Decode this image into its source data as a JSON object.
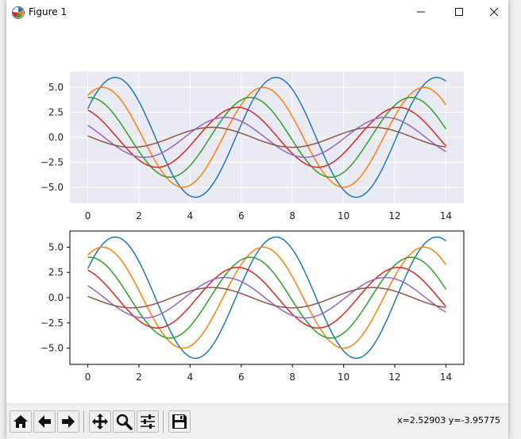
{
  "window": {
    "title": "Figure 1"
  },
  "toolbar": {
    "coordinates": "x=2.52903    y=-3.95775",
    "buttons": [
      {
        "name": "home-icon"
      },
      {
        "name": "back-arrow-icon"
      },
      {
        "name": "forward-arrow-icon"
      },
      {
        "name": "pan-move-icon"
      },
      {
        "name": "zoom-magnifier-icon"
      },
      {
        "name": "configure-subplots-icon"
      },
      {
        "name": "save-floppy-icon"
      }
    ]
  },
  "chart_data": [
    {
      "type": "line",
      "style": "seaborn-darkgrid",
      "grid": true,
      "background": "#eaeaf2",
      "xlim": [
        -0.7,
        14.7
      ],
      "ylim": [
        -6.6,
        6.6
      ],
      "x_ticks": [
        "0",
        "2",
        "4",
        "6",
        "8",
        "10",
        "12",
        "14"
      ],
      "y_ticks": [
        "5.0",
        "2.5",
        "0.0",
        "−2.5",
        "−5.0"
      ],
      "series": [
        {
          "function": "sin(x + 0.5) * 6",
          "color": "#1f77b4"
        },
        {
          "function": "sin(x + 1.0) * 5",
          "color": "#ff7f0e"
        },
        {
          "function": "sin(x + 1.5) * 4",
          "color": "#2ca02c"
        },
        {
          "function": "sin(x + 2.0) * 3",
          "color": "#d62728"
        },
        {
          "function": "sin(x + 2.5) * 2",
          "color": "#9467bd"
        },
        {
          "function": "sin(x + 3.0) * 1",
          "color": "#8c564b"
        }
      ]
    },
    {
      "type": "line",
      "style": "classic",
      "grid": false,
      "background": "#ffffff",
      "xlim": [
        -0.7,
        14.7
      ],
      "ylim": [
        -6.6,
        6.6
      ],
      "x_ticks": [
        "0",
        "2",
        "4",
        "6",
        "8",
        "10",
        "12",
        "14"
      ],
      "y_ticks": [
        "5.0",
        "2.5",
        "0.0",
        "−2.5",
        "−5.0"
      ],
      "series": [
        {
          "function": "sin(x + 0.5) * 6",
          "color": "#1f77b4"
        },
        {
          "function": "sin(x + 1.0) * 5",
          "color": "#ff7f0e"
        },
        {
          "function": "sin(x + 1.5) * 4",
          "color": "#2ca02c"
        },
        {
          "function": "sin(x + 2.0) * 3",
          "color": "#d62728"
        },
        {
          "function": "sin(x + 2.5) * 2",
          "color": "#9467bd"
        },
        {
          "function": "sin(x + 3.0) * 1",
          "color": "#8c564b"
        }
      ]
    }
  ]
}
